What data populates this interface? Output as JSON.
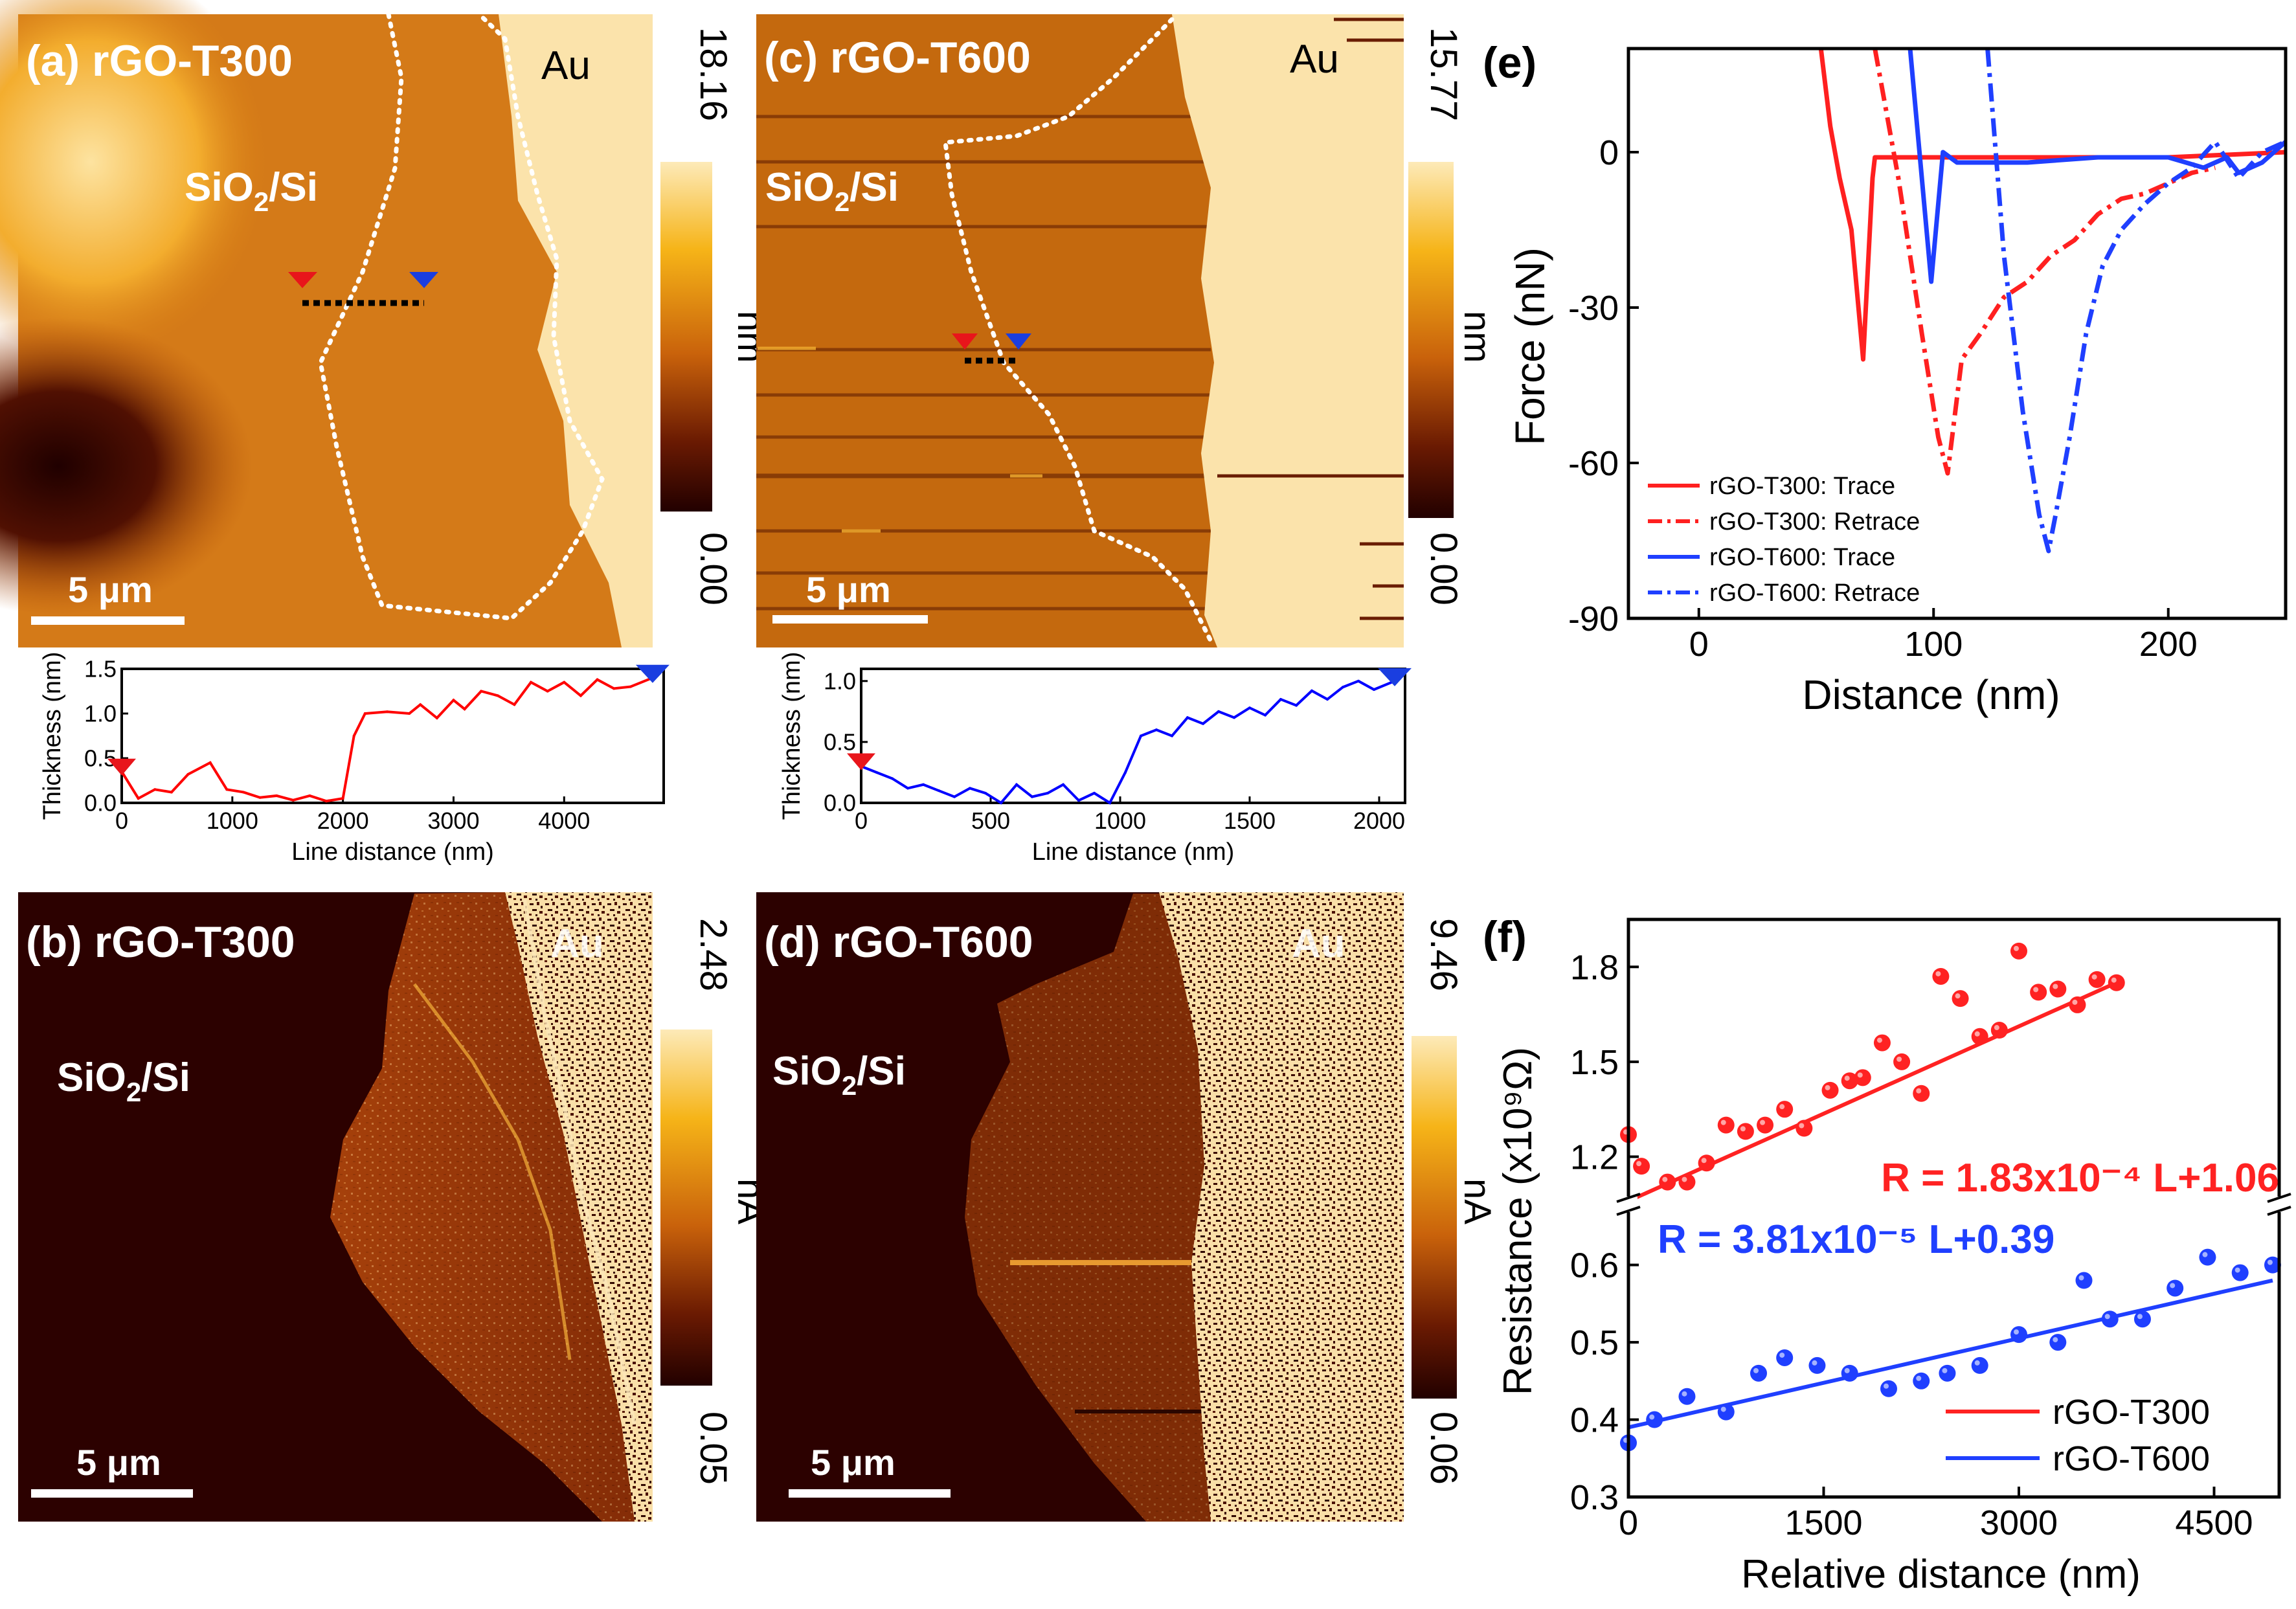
{
  "panels": {
    "a": {
      "label": "(a) rGO-T300",
      "region": "SiO₂/Si",
      "region_base": "SiO",
      "region_sub": "2",
      "region_tail": "/Si",
      "electrode": "Au",
      "scale_bar": "5 μm",
      "cbar_max": "18.16",
      "cbar_min": "0.00",
      "cbar_unit": "nm"
    },
    "b": {
      "label": "(b) rGO-T300",
      "region": "SiO2/Si",
      "region_base": "SiO",
      "region_sub": "2",
      "region_tail": "/Si",
      "electrode": "Au",
      "scale_bar": "5 μm",
      "cbar_max": "2.48",
      "cbar_min": "0.05",
      "cbar_unit": "nA"
    },
    "c": {
      "label": "(c) rGO-T600",
      "region_base": "SiO",
      "region_sub": "2",
      "region_tail": "/Si",
      "electrode": "Au",
      "scale_bar": "5 μm",
      "cbar_max": "15.77",
      "cbar_min": "0.00",
      "cbar_unit": "nm"
    },
    "d": {
      "label": "(d) rGO-T600",
      "region_base": "SiO",
      "region_sub": "2",
      "region_tail": "/Si",
      "electrode": "Au",
      "scale_bar": "5 μm",
      "cbar_max": "9.46",
      "cbar_min": "0.06",
      "cbar_unit": "nA"
    },
    "e": {
      "label": "(e)"
    },
    "f": {
      "label": "(f)"
    }
  },
  "chart_data": [
    {
      "id": "profile-a",
      "type": "line",
      "xlabel": "Line distance (nm)",
      "ylabel": "Thickness (nm)",
      "xlim": [
        0,
        4900
      ],
      "ylim": [
        0,
        1.5
      ],
      "xticks": [
        "0",
        "1000",
        "2000",
        "3000",
        "4000"
      ],
      "yticks": [
        "0.0",
        "0.5",
        "1.0",
        "1.5"
      ],
      "color": "#ff0000",
      "x": [
        0,
        150,
        300,
        450,
        600,
        800,
        950,
        1100,
        1250,
        1400,
        1550,
        1700,
        1850,
        2000,
        2100,
        2200,
        2400,
        2600,
        2700,
        2850,
        3000,
        3100,
        3250,
        3400,
        3550,
        3700,
        3850,
        4000,
        4150,
        4300,
        4450,
        4600,
        4800
      ],
      "y": [
        0.35,
        0.05,
        0.15,
        0.12,
        0.32,
        0.45,
        0.15,
        0.12,
        0.06,
        0.08,
        0.03,
        0.08,
        0.02,
        0.05,
        0.75,
        1.0,
        1.02,
        1.0,
        1.1,
        0.95,
        1.15,
        1.05,
        1.25,
        1.2,
        1.1,
        1.35,
        1.25,
        1.35,
        1.2,
        1.38,
        1.28,
        1.3,
        1.4
      ]
    },
    {
      "id": "profile-c",
      "type": "line",
      "xlabel": "Line distance (nm)",
      "ylabel": "Thickness (nm)",
      "xlim": [
        0,
        2100
      ],
      "ylim": [
        0,
        1.1
      ],
      "xticks": [
        "0",
        "500",
        "1000",
        "1500",
        "2000"
      ],
      "yticks": [
        "0.0",
        "0.5",
        "1.0"
      ],
      "color": "#0000ff",
      "x": [
        0,
        60,
        120,
        180,
        240,
        300,
        360,
        420,
        480,
        540,
        600,
        660,
        720,
        780,
        840,
        900,
        960,
        1020,
        1080,
        1140,
        1200,
        1260,
        1320,
        1380,
        1440,
        1500,
        1560,
        1620,
        1680,
        1740,
        1800,
        1860,
        1920,
        1980,
        2060
      ],
      "y": [
        0.3,
        0.25,
        0.2,
        0.12,
        0.15,
        0.1,
        0.05,
        0.12,
        0.08,
        0.0,
        0.15,
        0.05,
        0.08,
        0.15,
        0.02,
        0.08,
        0.0,
        0.25,
        0.55,
        0.6,
        0.55,
        0.7,
        0.65,
        0.75,
        0.7,
        0.78,
        0.72,
        0.85,
        0.8,
        0.92,
        0.85,
        0.95,
        1.0,
        0.93,
        1.0
      ]
    },
    {
      "id": "force",
      "type": "line",
      "xlabel": "Distance (nm)",
      "ylabel": "Force (nN)",
      "xlim": [
        -30,
        250
      ],
      "ylim": [
        -90,
        20
      ],
      "xticks": [
        "0",
        "100",
        "200"
      ],
      "yticks": [
        "0",
        "-30",
        "-60",
        "-90"
      ],
      "legend": [
        "rGO-T300: Trace",
        "rGO-T300: Retrace",
        "rGO-T600: Trace",
        "rGO-T600: Retrace"
      ],
      "series": [
        {
          "name": "rGO-T300: Trace",
          "color": "#ff2020",
          "dash": "solid",
          "x": [
            52,
            56,
            60,
            65,
            70,
            74,
            75,
            80,
            90,
            100,
            130,
            160,
            200,
            250
          ],
          "y": [
            20,
            5,
            -5,
            -15,
            -40,
            -5,
            -1,
            -1,
            -1,
            -1,
            -1,
            -1,
            -1,
            0
          ]
        },
        {
          "name": "rGO-T300: Retrace",
          "color": "#ff2020",
          "dash": "dashdot",
          "x": [
            75,
            85,
            95,
            102,
            106,
            112,
            120,
            130,
            140,
            150,
            160,
            170,
            180,
            190,
            200,
            210,
            220
          ],
          "y": [
            20,
            -5,
            -35,
            -55,
            -62,
            -40,
            -35,
            -28,
            -25,
            -20,
            -17,
            -12,
            -9,
            -8,
            -6,
            -4,
            -3
          ]
        },
        {
          "name": "rGO-T600: Trace",
          "color": "#1f3fff",
          "dash": "solid",
          "x": [
            90,
            95,
            99,
            104,
            110,
            140,
            170,
            200,
            215,
            225,
            230,
            240,
            245,
            250
          ],
          "y": [
            20,
            -5,
            -25,
            0,
            -2,
            -2,
            -1,
            -1,
            -3,
            -1,
            -4,
            -2,
            0,
            2
          ]
        },
        {
          "name": "rGO-T600: Retrace",
          "color": "#1f3fff",
          "dash": "dashdot",
          "x": [
            123,
            130,
            138,
            145,
            149,
            152,
            158,
            165,
            172,
            180,
            190,
            200,
            210,
            220,
            230,
            240,
            250
          ],
          "y": [
            20,
            -20,
            -50,
            -70,
            -77,
            -70,
            -55,
            -35,
            -22,
            -15,
            -10,
            -6,
            -3,
            2,
            -5,
            0,
            2
          ]
        }
      ]
    },
    {
      "id": "resistance",
      "type": "scatter",
      "xlabel": "Relative distance (nm)",
      "ylabel": "Resistance (x10⁹Ω)",
      "xlim": [
        0,
        5000
      ],
      "ylim_upper": [
        1.07,
        1.95
      ],
      "ylim_lower": [
        0.3,
        0.67
      ],
      "xticks": [
        "0",
        "1500",
        "3000",
        "4500"
      ],
      "yticks_upper": [
        "1.2",
        "1.5",
        "1.8"
      ],
      "yticks_lower": [
        "0.3",
        "0.4",
        "0.5",
        "0.6"
      ],
      "annotation_red": "R = 1.83x10⁻⁴ L+1.06",
      "annotation_blue": "R = 3.81x10⁻⁵ L+0.39",
      "legend": [
        "rGO-T300",
        "rGO-T600"
      ],
      "series": [
        {
          "name": "rGO-T300",
          "color": "#ff2222",
          "x": [
            0,
            100,
            300,
            450,
            600,
            750,
            900,
            1050,
            1200,
            1350,
            1550,
            1700,
            1800,
            1950,
            2100,
            2250,
            2400,
            2550,
            2700,
            2850,
            3000,
            3150,
            3300,
            3450,
            3600,
            3750
          ],
          "y": [
            1.27,
            1.17,
            1.12,
            1.12,
            1.18,
            1.3,
            1.28,
            1.3,
            1.35,
            1.29,
            1.41,
            1.44,
            1.45,
            1.56,
            1.5,
            1.4,
            1.77,
            1.7,
            1.58,
            1.6,
            1.85,
            1.72,
            1.73,
            1.68,
            1.76,
            1.75
          ],
          "fit": [
            1.06,
            1.75
          ]
        },
        {
          "name": "rGO-T600",
          "color": "#1f3fff",
          "x": [
            0,
            200,
            450,
            750,
            1000,
            1200,
            1450,
            1700,
            2000,
            2250,
            2450,
            2700,
            3000,
            3300,
            3500,
            3700,
            3950,
            4200,
            4450,
            4700,
            4950
          ],
          "y": [
            0.37,
            0.4,
            0.43,
            0.41,
            0.46,
            0.48,
            0.47,
            0.46,
            0.44,
            0.45,
            0.46,
            0.47,
            0.51,
            0.5,
            0.58,
            0.53,
            0.53,
            0.57,
            0.61,
            0.59,
            0.6
          ],
          "fit": [
            0.39,
            0.58
          ]
        }
      ]
    }
  ]
}
